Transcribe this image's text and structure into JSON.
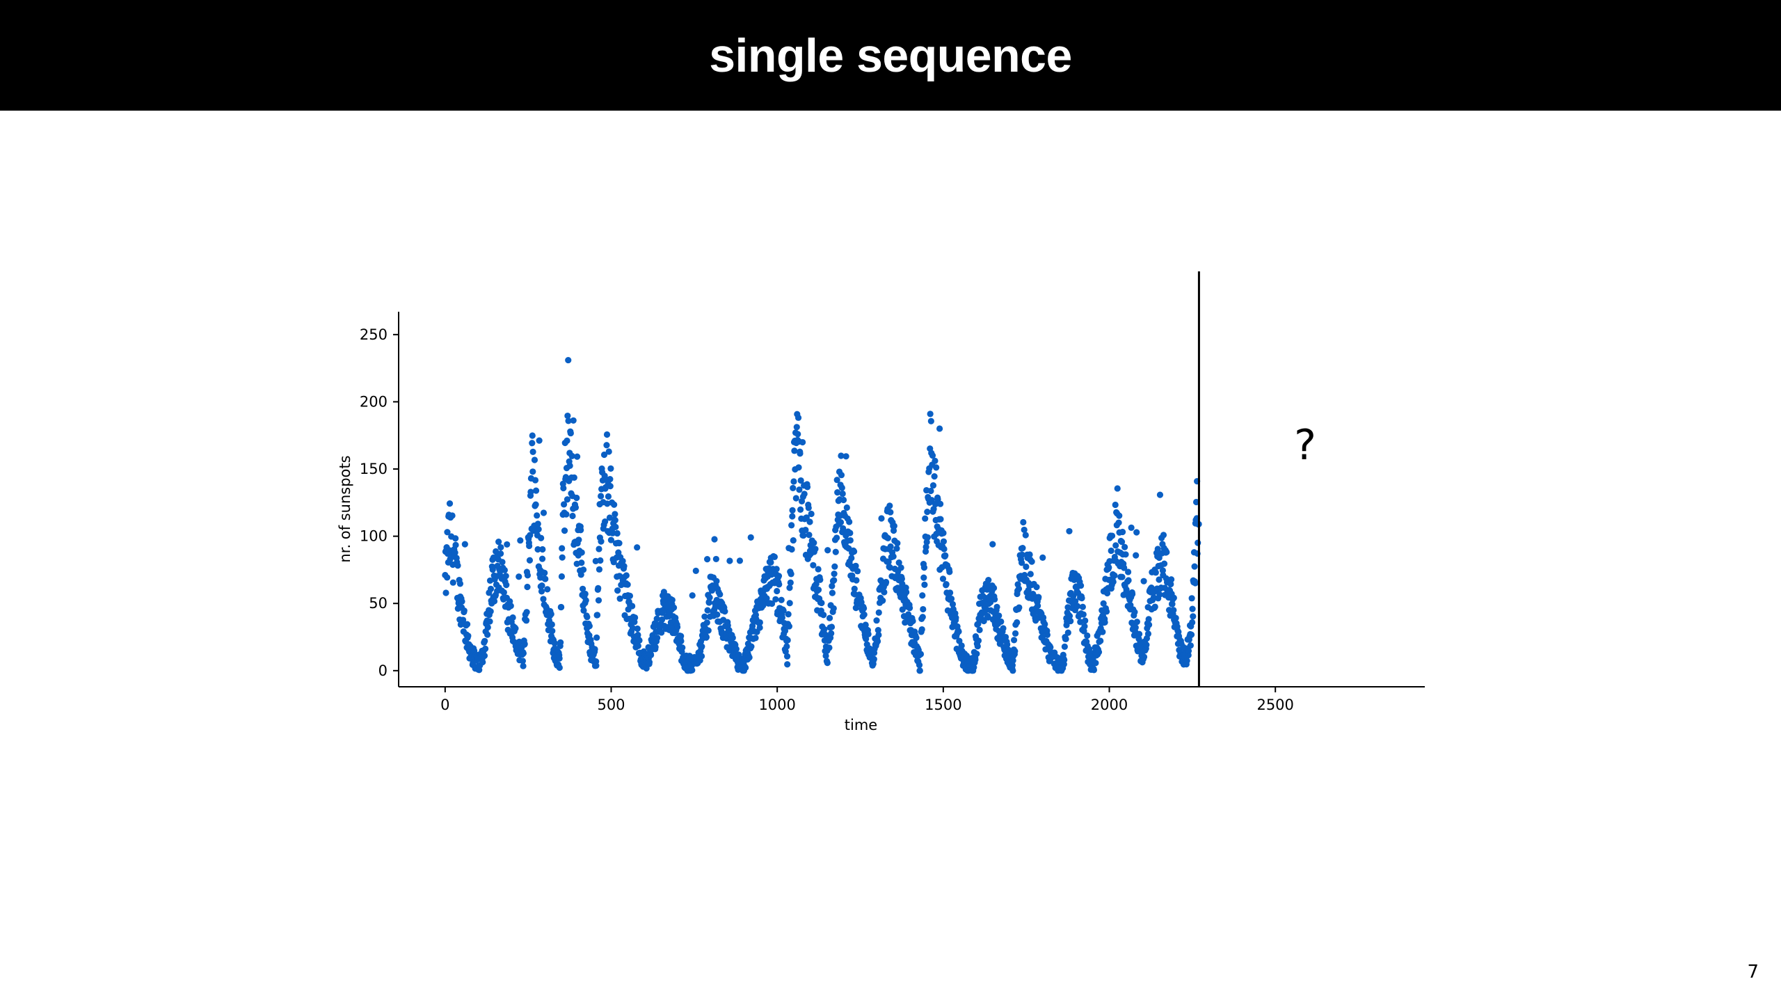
{
  "slide": {
    "title": "single sequence",
    "page_number": "7",
    "forecast_marker": "?"
  },
  "chart_data": {
    "type": "scatter",
    "title": "",
    "xlabel": "time",
    "ylabel": "nr. of sunspots",
    "xlim": [
      -140,
      2950
    ],
    "ylim": [
      -12,
      267
    ],
    "xticks": [
      0,
      500,
      1000,
      1500,
      2000,
      2500
    ],
    "yticks": [
      0,
      50,
      100,
      150,
      200,
      250
    ],
    "point_color": "#0a5fc4",
    "grid": false,
    "legend": "none",
    "forecast_divider_x": 2270,
    "cycles": [
      {
        "x": [
          0,
          12,
          25,
          40,
          55,
          70,
          85,
          100,
          115
        ],
        "y": [
          65,
          100,
          90,
          60,
          40,
          20,
          10,
          5,
          12
        ]
      },
      {
        "x": [
          115,
          130,
          145,
          160,
          175,
          190,
          205,
          220,
          235
        ],
        "y": [
          12,
          45,
          70,
          80,
          65,
          45,
          30,
          15,
          8
        ]
      },
      {
        "x": [
          235,
          250,
          262,
          275,
          290,
          310,
          330,
          345
        ],
        "y": [
          8,
          80,
          150,
          120,
          80,
          45,
          15,
          5
        ]
      },
      {
        "x": [
          345,
          355,
          368,
          380,
          395,
          410,
          425,
          440,
          455
        ],
        "y": [
          5,
          110,
          165,
          140,
          110,
          80,
          40,
          15,
          10
        ]
      },
      {
        "x": [
          455,
          465,
          480,
          495,
          510,
          530,
          550,
          570,
          590,
          605
        ],
        "y": [
          10,
          100,
          150,
          130,
          95,
          70,
          50,
          30,
          12,
          5
        ]
      },
      {
        "x": [
          605,
          630,
          655,
          680,
          700,
          725
        ],
        "y": [
          5,
          25,
          45,
          45,
          25,
          5
        ]
      },
      {
        "x": [
          725,
          750,
          775,
          800,
          820,
          840,
          860,
          880,
          900
        ],
        "y": [
          5,
          5,
          20,
          55,
          50,
          35,
          20,
          8,
          3
        ]
      },
      {
        "x": [
          900,
          930,
          960,
          990,
          1010,
          1030
        ],
        "y": [
          3,
          30,
          55,
          70,
          50,
          10
        ]
      },
      {
        "x": [
          1030,
          1045,
          1060,
          1075,
          1090,
          1110,
          1130,
          1150
        ],
        "y": [
          10,
          110,
          175,
          140,
          110,
          80,
          50,
          10
        ]
      },
      {
        "x": [
          1150,
          1170,
          1185,
          1200,
          1215,
          1230,
          1250,
          1270,
          1290
        ],
        "y": [
          10,
          60,
          145,
          120,
          90,
          70,
          50,
          25,
          5
        ]
      },
      {
        "x": [
          1290,
          1305,
          1320,
          1335,
          1350,
          1370,
          1390,
          1410,
          1430
        ],
        "y": [
          5,
          40,
          75,
          100,
          90,
          65,
          45,
          25,
          5
        ]
      },
      {
        "x": [
          1430,
          1445,
          1460,
          1475,
          1490,
          1510,
          1530,
          1550,
          1570,
          1590
        ],
        "y": [
          5,
          95,
          160,
          130,
          100,
          70,
          40,
          15,
          5,
          3
        ]
      },
      {
        "x": [
          1590,
          1610,
          1630,
          1650,
          1670,
          1690,
          1710
        ],
        "y": [
          3,
          40,
          60,
          50,
          30,
          15,
          3
        ]
      },
      {
        "x": [
          1710,
          1725,
          1740,
          1760,
          1780,
          1800,
          1820,
          1840,
          1860
        ],
        "y": [
          3,
          60,
          90,
          70,
          50,
          30,
          15,
          5,
          3
        ]
      },
      {
        "x": [
          1860,
          1875,
          1890,
          1905,
          1920,
          1935,
          1950
        ],
        "y": [
          3,
          40,
          65,
          60,
          40,
          15,
          3
        ]
      },
      {
        "x": [
          1950,
          1975,
          2000,
          2020,
          2040,
          2060,
          2080,
          2100
        ],
        "y": [
          3,
          30,
          75,
          100,
          80,
          55,
          30,
          8
        ]
      },
      {
        "x": [
          2100,
          2120,
          2140,
          2160,
          2180,
          2200,
          2215,
          2230,
          2245,
          2260,
          2270
        ],
        "y": [
          8,
          45,
          70,
          85,
          60,
          35,
          15,
          8,
          30,
          90,
          140
        ]
      }
    ]
  }
}
